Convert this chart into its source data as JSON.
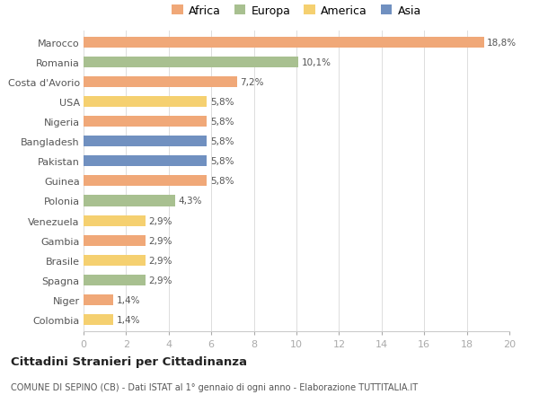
{
  "countries": [
    "Marocco",
    "Romania",
    "Costa d'Avorio",
    "USA",
    "Nigeria",
    "Bangladesh",
    "Pakistan",
    "Guinea",
    "Polonia",
    "Venezuela",
    "Gambia",
    "Brasile",
    "Spagna",
    "Niger",
    "Colombia"
  ],
  "values": [
    18.8,
    10.1,
    7.2,
    5.8,
    5.8,
    5.8,
    5.8,
    5.8,
    4.3,
    2.9,
    2.9,
    2.9,
    2.9,
    1.4,
    1.4
  ],
  "labels": [
    "18,8%",
    "10,1%",
    "7,2%",
    "5,8%",
    "5,8%",
    "5,8%",
    "5,8%",
    "5,8%",
    "4,3%",
    "2,9%",
    "2,9%",
    "2,9%",
    "2,9%",
    "1,4%",
    "1,4%"
  ],
  "colors": [
    "#f0a878",
    "#a8c090",
    "#f0a878",
    "#f5d070",
    "#f0a878",
    "#7090c0",
    "#7090c0",
    "#f0a878",
    "#a8c090",
    "#f5d070",
    "#f0a878",
    "#f5d070",
    "#a8c090",
    "#f0a878",
    "#f5d070"
  ],
  "legend_labels": [
    "Africa",
    "Europa",
    "America",
    "Asia"
  ],
  "legend_colors": [
    "#f0a878",
    "#a8c090",
    "#f5d070",
    "#7090c0"
  ],
  "title": "Cittadini Stranieri per Cittadinanza",
  "subtitle": "COMUNE DI SEPINO (CB) - Dati ISTAT al 1° gennaio di ogni anno - Elaborazione TUTTITALIA.IT",
  "xlim": [
    0,
    20
  ],
  "xticks": [
    0,
    2,
    4,
    6,
    8,
    10,
    12,
    14,
    16,
    18,
    20
  ],
  "background_color": "#ffffff",
  "bar_height": 0.55
}
